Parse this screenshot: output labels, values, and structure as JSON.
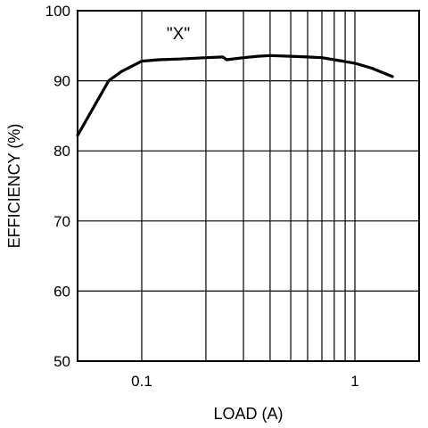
{
  "chart_data": {
    "type": "line",
    "xscale": "log",
    "xlim": [
      0.05,
      2
    ],
    "ylim": [
      50,
      100
    ],
    "xlabel": "LOAD (A)",
    "ylabel": "EFFICIENCY (%)",
    "annotation": "\"X\"",
    "grid": true,
    "x_ticks": [
      {
        "value": 0.1,
        "label": "0.1"
      },
      {
        "value": 1,
        "label": "1"
      }
    ],
    "y_ticks": [
      {
        "value": 50,
        "label": "50"
      },
      {
        "value": 60,
        "label": "60"
      },
      {
        "value": 70,
        "label": "70"
      },
      {
        "value": 80,
        "label": "80"
      },
      {
        "value": 90,
        "label": "90"
      },
      {
        "value": 100,
        "label": "100"
      }
    ],
    "x_gridlines": [
      0.1,
      0.2,
      0.3,
      0.4,
      0.5,
      0.6,
      0.7,
      0.8,
      0.9,
      1
    ],
    "y_gridlines": [
      60,
      70,
      80,
      90
    ],
    "series": [
      {
        "name": "",
        "x": [
          0.05,
          0.07,
          0.08,
          0.1,
          0.12,
          0.15,
          0.2,
          0.24,
          0.25,
          0.3,
          0.35,
          0.4,
          0.5,
          0.6,
          0.7,
          0.8,
          1.0,
          1.2,
          1.5
        ],
        "y": [
          82.2,
          90.0,
          91.3,
          92.8,
          93.0,
          93.1,
          93.3,
          93.4,
          93.0,
          93.3,
          93.5,
          93.6,
          93.5,
          93.4,
          93.3,
          93.0,
          92.5,
          91.8,
          90.6
        ]
      }
    ]
  }
}
